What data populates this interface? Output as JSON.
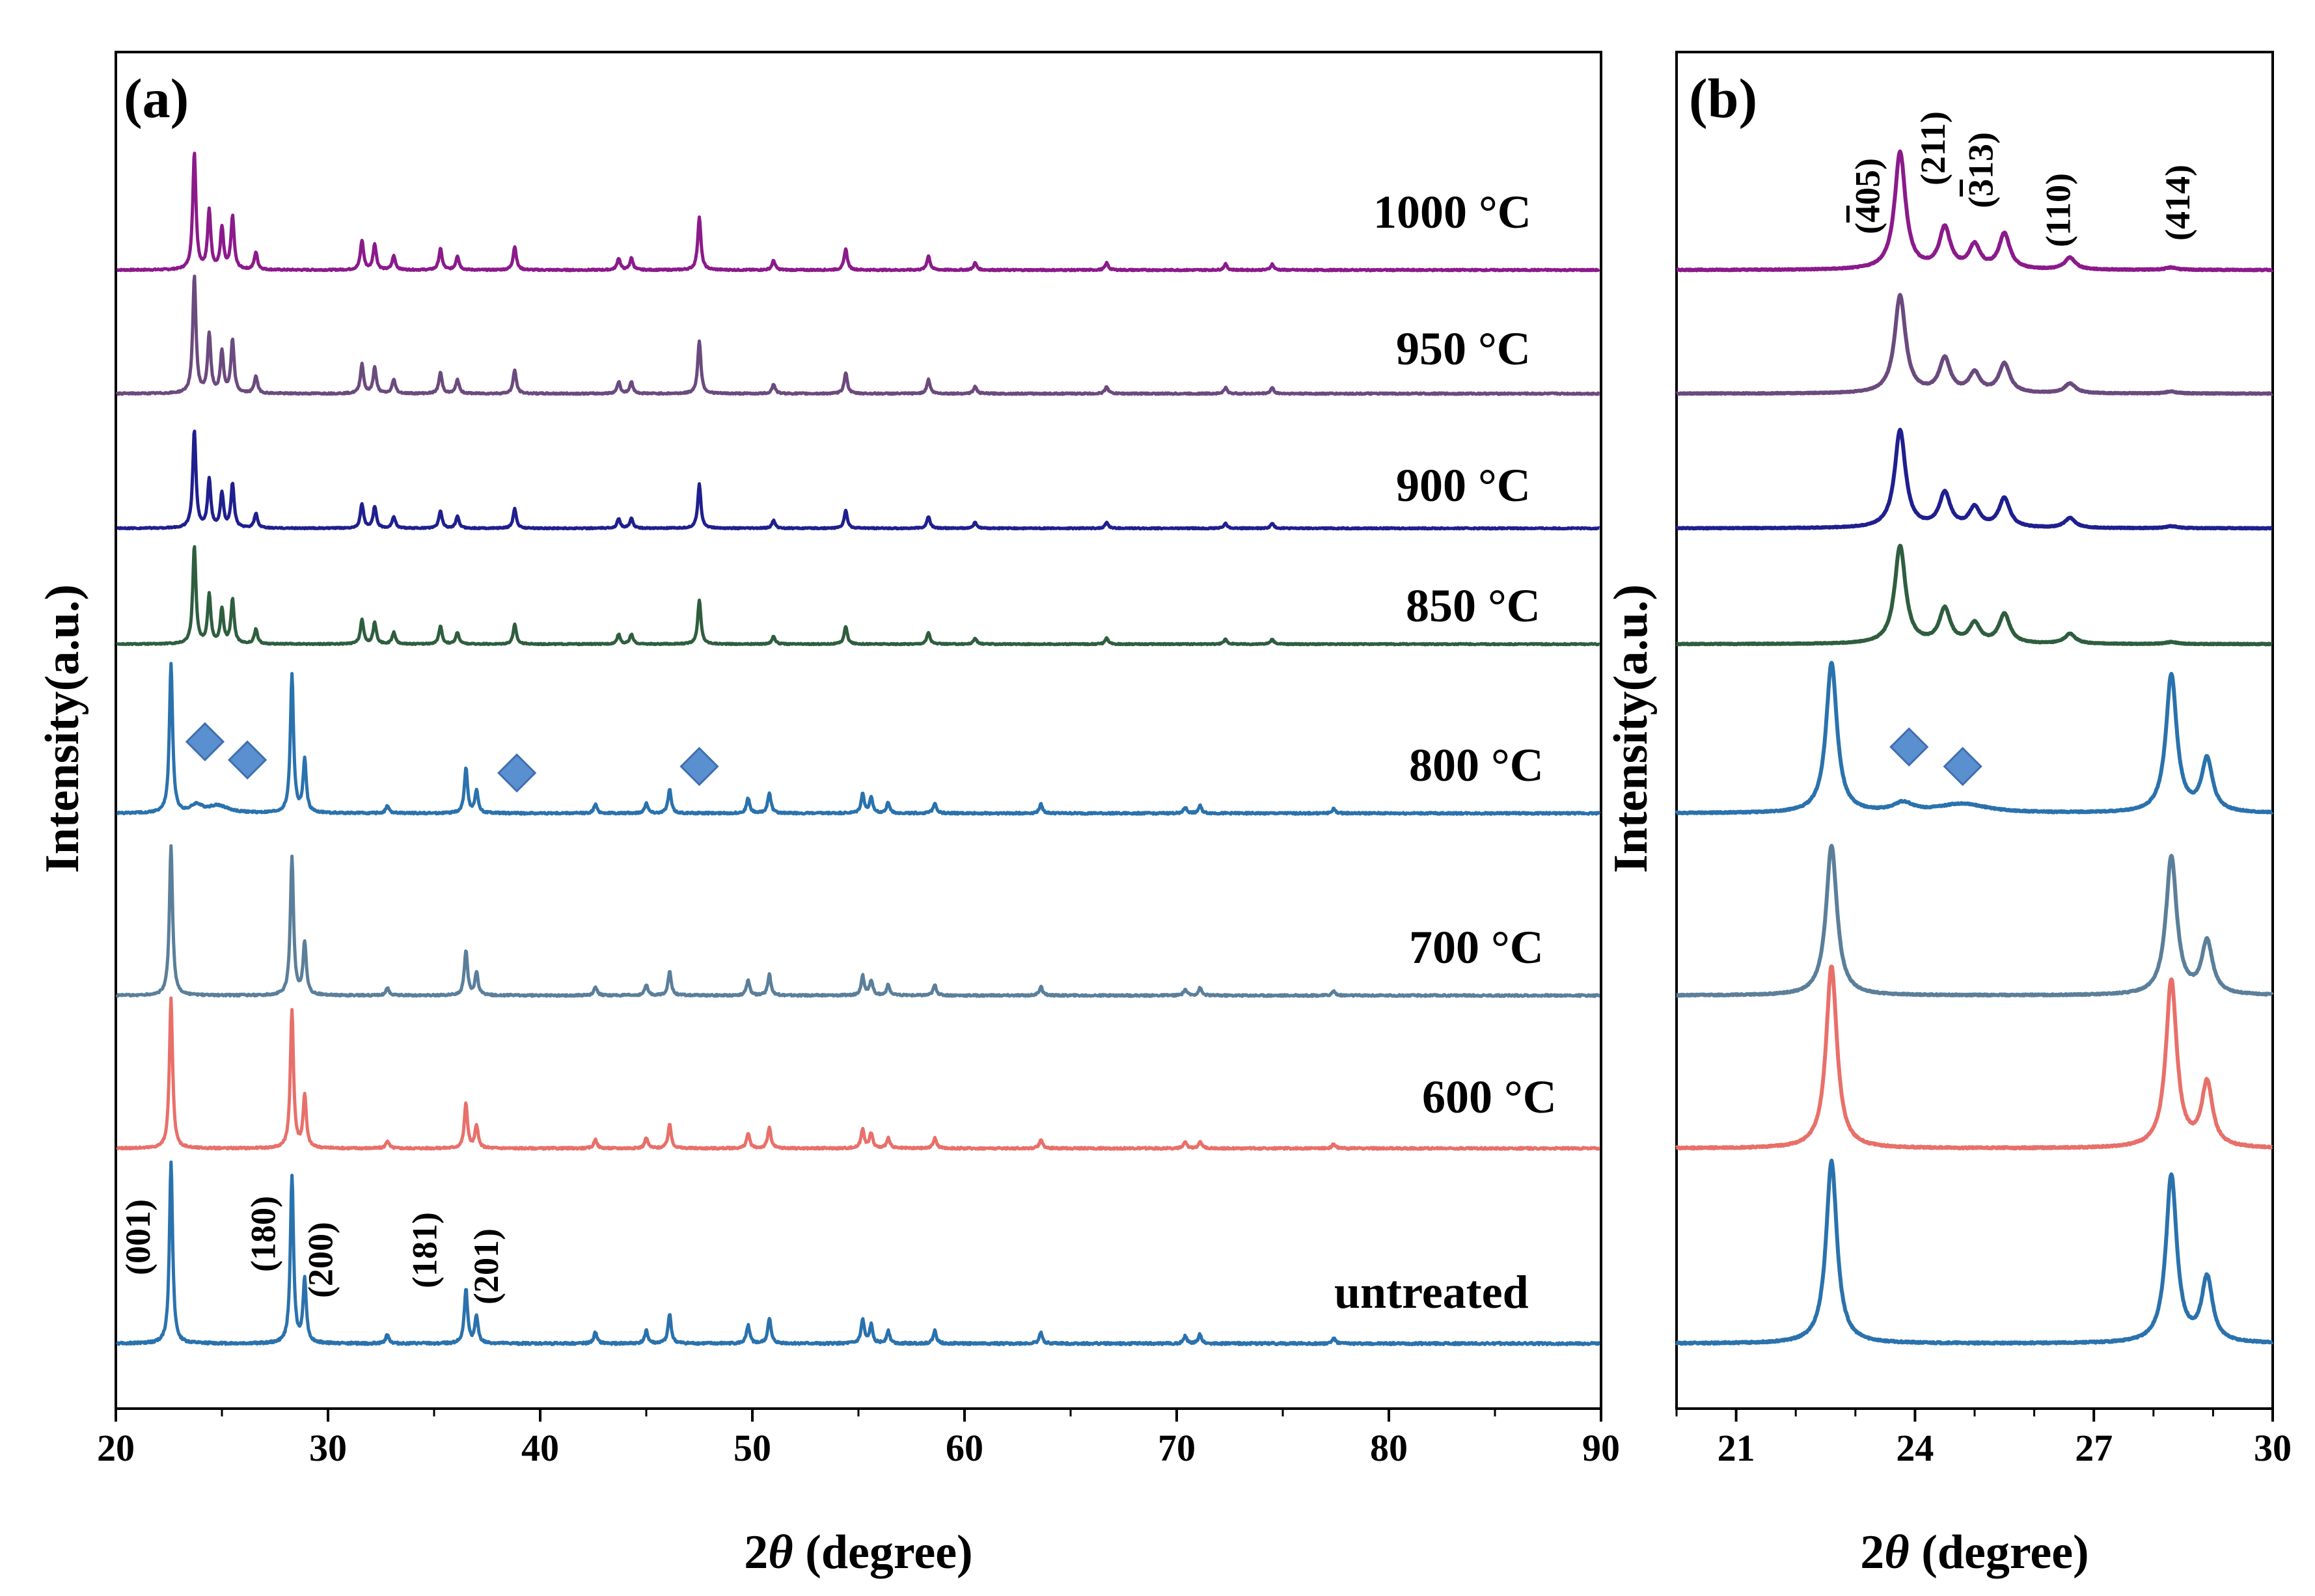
{
  "chart_data": [
    {
      "panel": "(a)",
      "type": "line",
      "xlabel_main": "2",
      "xlabel_italic": "θ",
      "xlabel_unit": " (degree)",
      "ylabel": "Intensity(a.u.)",
      "xlim": [
        20,
        90
      ],
      "xticks": [
        "20",
        "30",
        "40",
        "50",
        "60",
        "70",
        "80",
        "90"
      ],
      "series": [
        {
          "name": "1000 °C",
          "color": "#8b1a8b"
        },
        {
          "name": "950 °C",
          "color": "#6b4a7e"
        },
        {
          "name": "900 °C",
          "color": "#1f1f8f"
        },
        {
          "name": "850 °C",
          "color": "#2e5e3e"
        },
        {
          "name": "800 °C",
          "color": "#2a72ad"
        },
        {
          "name": "700 °C",
          "color": "#5b7f9a"
        },
        {
          "name": "600 °C",
          "color": "#e8706a"
        },
        {
          "name": "untreated",
          "color": "#2a72ad"
        }
      ],
      "peaks": {
        "treated_high": [
          [
            23.7,
            1.0
          ],
          [
            24.4,
            0.5
          ],
          [
            25.0,
            0.35
          ],
          [
            25.5,
            0.45
          ],
          [
            26.6,
            0.15
          ],
          [
            31.6,
            0.25
          ],
          [
            32.2,
            0.22
          ],
          [
            33.1,
            0.12
          ],
          [
            35.3,
            0.18
          ],
          [
            36.1,
            0.12
          ],
          [
            38.8,
            0.2
          ],
          [
            43.7,
            0.1
          ],
          [
            44.3,
            0.1
          ],
          [
            47.5,
            0.45
          ],
          [
            51.0,
            0.08
          ],
          [
            54.4,
            0.18
          ],
          [
            58.3,
            0.12
          ],
          [
            60.5,
            0.06
          ],
          [
            66.7,
            0.06
          ],
          [
            72.3,
            0.05
          ],
          [
            74.5,
            0.05
          ]
        ],
        "low_phase": [
          [
            22.6,
            1.0
          ],
          [
            28.3,
            0.92
          ],
          [
            28.9,
            0.35
          ],
          [
            32.8,
            0.05
          ],
          [
            36.5,
            0.3
          ],
          [
            37.0,
            0.15
          ],
          [
            42.6,
            0.06
          ],
          [
            45.0,
            0.07
          ],
          [
            46.1,
            0.16
          ],
          [
            49.8,
            0.1
          ],
          [
            50.8,
            0.14
          ],
          [
            55.2,
            0.13
          ],
          [
            55.6,
            0.1
          ],
          [
            56.4,
            0.07
          ],
          [
            58.6,
            0.07
          ],
          [
            63.6,
            0.06
          ],
          [
            70.4,
            0.04
          ],
          [
            71.1,
            0.05
          ],
          [
            77.4,
            0.03
          ]
        ]
      },
      "hkl_labels": [
        {
          "text": "(001)",
          "x": 21.6
        },
        {
          "text": "(180)",
          "x": 27.5
        },
        {
          "text": "(200)",
          "x": 30.2
        },
        {
          "text": "(181)",
          "x": 35.1
        },
        {
          "text": "(201)",
          "x": 38.0
        }
      ],
      "diamond_markers_x": [
        24.2,
        26.2,
        38.9,
        47.5
      ]
    },
    {
      "panel": "(b)",
      "type": "line",
      "xlabel_main": "2",
      "xlabel_italic": "θ",
      "xlabel_unit": " (degree)",
      "ylabel": "Intensity(a.u.)",
      "xlim": [
        20,
        30
      ],
      "xticks": [
        "21",
        "24",
        "27",
        "30"
      ],
      "hkl_labels": [
        {
          "text": "(405)",
          "bar": "4",
          "x": 23.4
        },
        {
          "text": "(211)",
          "x": 24.5
        },
        {
          "text": "(313)",
          "bar": "3",
          "x": 25.3
        },
        {
          "text": "(110)",
          "x": 26.6
        },
        {
          "text": "(414)",
          "x": 28.6
        }
      ],
      "diamond_markers_x": [
        23.9,
        24.8
      ]
    }
  ]
}
